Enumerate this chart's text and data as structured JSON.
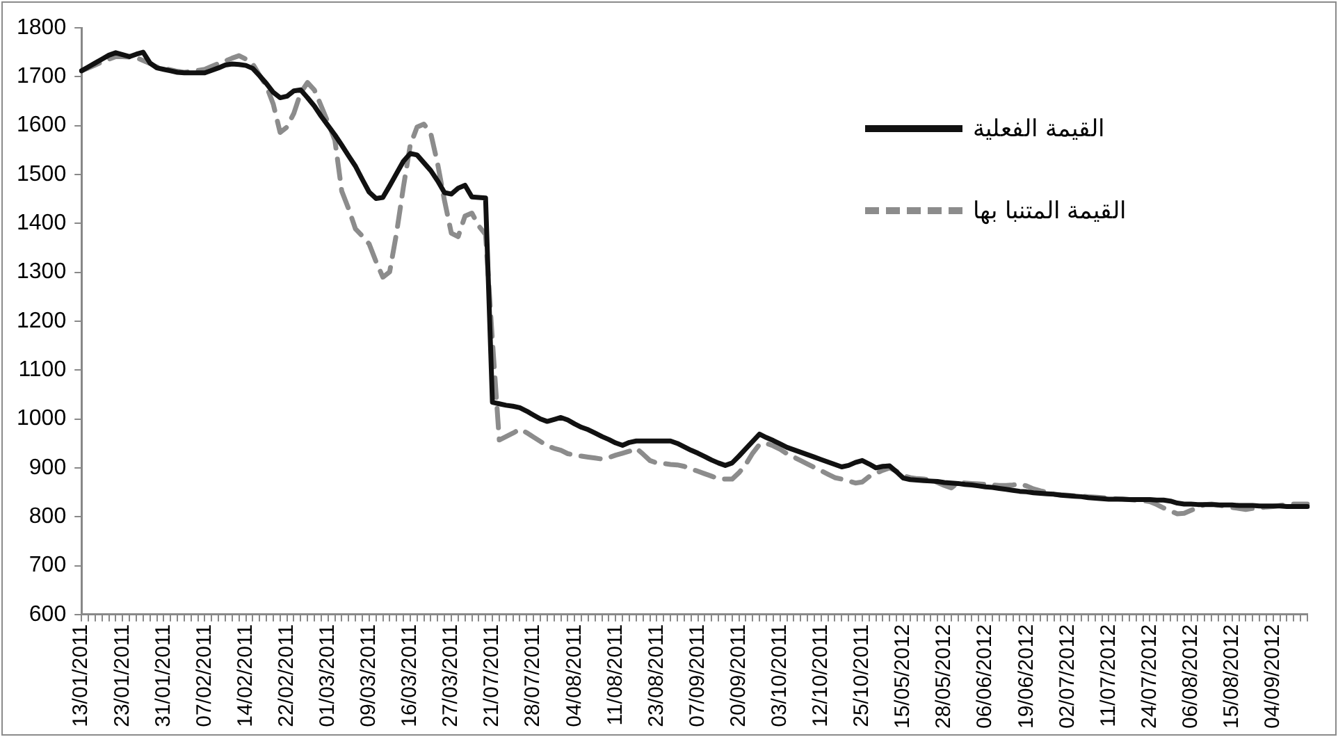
{
  "chart_data": {
    "type": "line",
    "categories": [
      "13/01/2011",
      null,
      null,
      null,
      null,
      null,
      "23/01/2011",
      null,
      null,
      null,
      null,
      null,
      "31/01/2011",
      null,
      null,
      null,
      null,
      null,
      "07/02/2011",
      null,
      null,
      null,
      null,
      null,
      "14/02/2011",
      null,
      null,
      null,
      null,
      null,
      "22/02/2011",
      null,
      null,
      null,
      null,
      null,
      "01/03/2011",
      null,
      null,
      null,
      null,
      null,
      "09/03/2011",
      null,
      null,
      null,
      null,
      null,
      "16/03/2011",
      null,
      null,
      null,
      null,
      null,
      "27/03/2011",
      null,
      null,
      null,
      null,
      null,
      "21/07/2011",
      null,
      null,
      null,
      null,
      null,
      "28/07/2011",
      null,
      null,
      null,
      null,
      null,
      "04/08/2011",
      null,
      null,
      null,
      null,
      null,
      "11/08/2011",
      null,
      null,
      null,
      null,
      null,
      "23/08/2011",
      null,
      null,
      null,
      null,
      null,
      "07/09/2011",
      null,
      null,
      null,
      null,
      null,
      "20/09/2011",
      null,
      null,
      null,
      null,
      null,
      "03/10/2011",
      null,
      null,
      null,
      null,
      null,
      "12/10/2011",
      null,
      null,
      null,
      null,
      null,
      "25/10/2011",
      null,
      null,
      null,
      null,
      null,
      "15/05/2012",
      null,
      null,
      null,
      null,
      null,
      "28/05/2012",
      null,
      null,
      null,
      null,
      null,
      "06/06/2012",
      null,
      null,
      null,
      null,
      null,
      "19/06/2012",
      null,
      null,
      null,
      null,
      null,
      "02/07/2012",
      null,
      null,
      null,
      null,
      null,
      "11/07/2012",
      null,
      null,
      null,
      null,
      null,
      "24/07/2012",
      null,
      null,
      null,
      null,
      null,
      "06/08/2012",
      null,
      null,
      null,
      null,
      null,
      "15/08/2012",
      null,
      null,
      null,
      null,
      null,
      "04/09/2012",
      null,
      null,
      null,
      null,
      null
    ],
    "series": [
      {
        "name": "القيمة الفعلية",
        "color": "#111111",
        "line_style": "solid",
        "values": [
          1712,
          1720,
          1728,
          1736,
          1744,
          1749,
          1745,
          1741,
          1746,
          1750,
          1728,
          1718,
          1715,
          1712,
          1709,
          1708,
          1708,
          1708,
          1708,
          1713,
          1718,
          1724,
          1726,
          1725,
          1723,
          1717,
          1702,
          1686,
          1668,
          1657,
          1660,
          1671,
          1673,
          1657,
          1640,
          1619,
          1600,
          1581,
          1560,
          1538,
          1517,
          1490,
          1464,
          1451,
          1453,
          1477,
          1502,
          1527,
          1543,
          1540,
          1524,
          1508,
          1487,
          1463,
          1460,
          1472,
          1478,
          1454,
          1453,
          1452,
          1034,
          1031,
          1028,
          1026,
          1023,
          1016,
          1008,
          1000,
          995,
          999,
          1003,
          998,
          990,
          983,
          978,
          971,
          964,
          958,
          951,
          946,
          952,
          955,
          955,
          955,
          955,
          955,
          955,
          950,
          943,
          936,
          930,
          923,
          916,
          910,
          905,
          910,
          924,
          939,
          954,
          969,
          962,
          956,
          949,
          942,
          937,
          932,
          927,
          922,
          917,
          912,
          907,
          902,
          905,
          911,
          915,
          908,
          900,
          903,
          904,
          892,
          879,
          876,
          875,
          874,
          873,
          872,
          870,
          869,
          868,
          866,
          865,
          863,
          861,
          860,
          858,
          856,
          854,
          852,
          851,
          849,
          848,
          847,
          846,
          844,
          843,
          842,
          841,
          839,
          838,
          837,
          836,
          836,
          836,
          835,
          835,
          835,
          835,
          834,
          834,
          832,
          828,
          826,
          826,
          825,
          825,
          825,
          824,
          824,
          824,
          823,
          823,
          823,
          822,
          822,
          822,
          822,
          821,
          821,
          821,
          821
        ]
      },
      {
        "name": "القيمة المتنبا بها",
        "color": "#8c8c8c",
        "line_style": "dashed",
        "values": [
          1712,
          1718,
          1724,
          1730,
          1736,
          1741,
          1741,
          1740,
          1739,
          1733,
          1727,
          1720,
          1717,
          1714,
          1711,
          1709,
          1711,
          1713,
          1715,
          1721,
          1727,
          1732,
          1738,
          1743,
          1736,
          1726,
          1703,
          1681,
          1644,
          1586,
          1597,
          1625,
          1667,
          1688,
          1673,
          1640,
          1606,
          1570,
          1466,
          1430,
          1389,
          1374,
          1358,
          1322,
          1290,
          1301,
          1380,
          1474,
          1560,
          1597,
          1603,
          1584,
          1522,
          1447,
          1380,
          1373,
          1415,
          1421,
          1395,
          1377,
          1160,
          957,
          964,
          971,
          979,
          972,
          963,
          954,
          945,
          940,
          936,
          929,
          926,
          924,
          922,
          920,
          918,
          921,
          926,
          930,
          934,
          940,
          928,
          915,
          910,
          909,
          907,
          906,
          903,
          898,
          893,
          888,
          883,
          878,
          877,
          877,
          890,
          907,
          930,
          948,
          950,
          945,
          938,
          929,
          922,
          915,
          908,
          901,
          894,
          887,
          880,
          877,
          873,
          869,
          871,
          882,
          889,
          895,
          900,
          893,
          884,
          880,
          878,
          877,
          875,
          870,
          864,
          859,
          870,
          869,
          868,
          867,
          866,
          865,
          864,
          864,
          865,
          867,
          863,
          857,
          853,
          850,
          846,
          845,
          844,
          843,
          842,
          841,
          840,
          839,
          838,
          837,
          836,
          835,
          834,
          833,
          831,
          825,
          818,
          812,
          806,
          807,
          813,
          819,
          825,
          826,
          824,
          821,
          819,
          817,
          815,
          817,
          818,
          820,
          821,
          823,
          825,
          826,
          826,
          826
        ]
      }
    ],
    "ylim": [
      600,
      1800
    ],
    "yticks": [
      600,
      700,
      800,
      900,
      1000,
      1100,
      1200,
      1300,
      1400,
      1500,
      1600,
      1700,
      1800
    ],
    "grid": false,
    "legend": "top right",
    "marker": "none"
  }
}
